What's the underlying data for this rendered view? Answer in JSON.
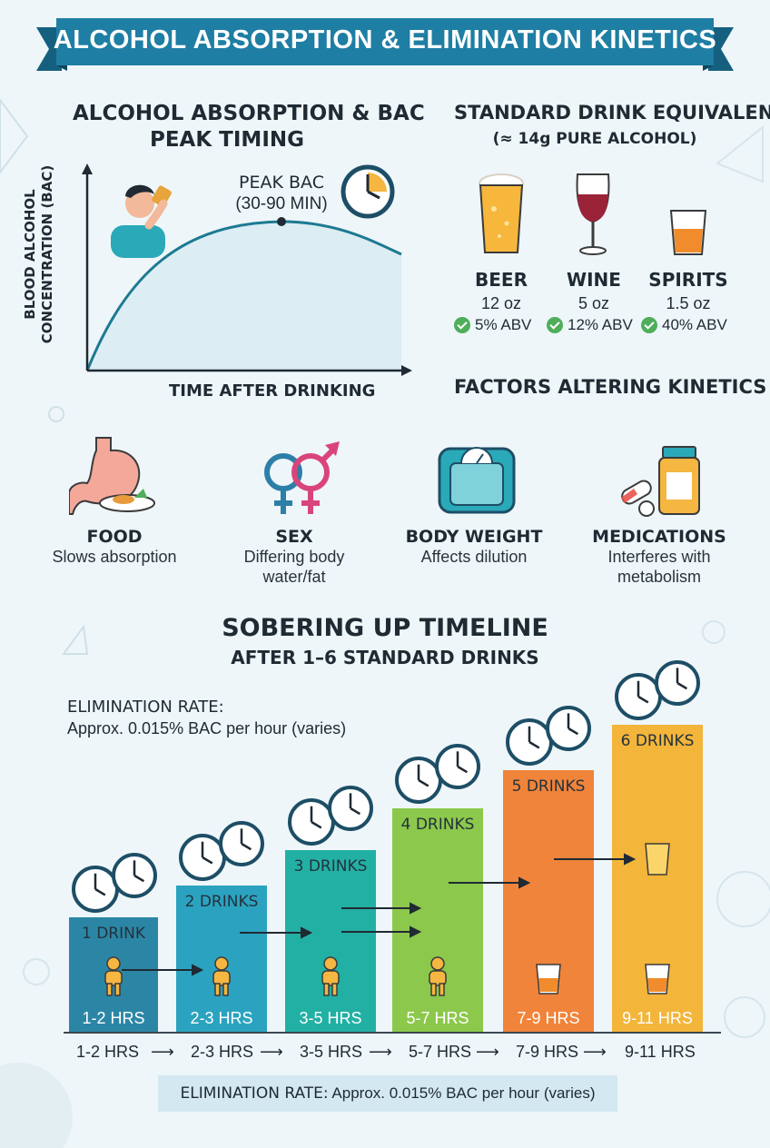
{
  "banner": {
    "title": "ALCOHOL ABSORPTION & ELIMINATION KINETICS"
  },
  "absorption": {
    "title_line1": "ALCOHOL ABSORPTION & BAC",
    "title_line2": "PEAK TIMING",
    "peak_label_line1": "PEAK BAC",
    "peak_label_line2": "(30-90 MIN)",
    "y_axis_line1": "BLOOD ALCOHOL",
    "y_axis_line2": "CONCENTRATION (BAC)",
    "x_axis": "TIME AFTER DRINKING"
  },
  "standard_drinks": {
    "title": "STANDARD DRINK EQUIVALENTS",
    "subtitle": "(≈ 14g PURE ALCOHOL)",
    "items": [
      {
        "name": "BEER",
        "volume": "12 oz",
        "abv": "5% ABV",
        "icon": "beer-glass-icon"
      },
      {
        "name": "WINE",
        "volume": "5 oz",
        "abv": "12% ABV",
        "icon": "wine-glass-icon"
      },
      {
        "name": "SPIRITS",
        "volume": "1.5 oz",
        "abv": "40% ABV",
        "icon": "shot-glass-icon"
      }
    ]
  },
  "factors": {
    "title": "FACTORS ALTERING KINETICS",
    "items": [
      {
        "title": "FOOD",
        "desc_line1": "Slows absorption",
        "desc_line2": "",
        "icon": "stomach-food-icon"
      },
      {
        "title": "SEX",
        "desc_line1": "Differing body",
        "desc_line2": "water/fat",
        "icon": "gender-symbols-icon"
      },
      {
        "title": "BODY WEIGHT",
        "desc_line1": "Affects dilution",
        "desc_line2": "",
        "icon": "scale-icon"
      },
      {
        "title": "MEDICATIONS",
        "desc_line1": "Interferes with",
        "desc_line2": "metabolism",
        "icon": "pills-bottle-icon"
      }
    ]
  },
  "sobering": {
    "title": "SOBERING UP TIMELINE",
    "subtitle": "AFTER 1–6 STANDARD DRINKS",
    "rate_label": "ELIMINATION RATE:",
    "rate_text": "Approx. 0.015% BAC per hour (varies)",
    "bars": [
      {
        "label": "1 DRINK",
        "hours": "1-2 HRS",
        "color": "#2b86a6"
      },
      {
        "label": "2 DRINKS",
        "hours": "2-3 HRS",
        "color": "#2ba3c0"
      },
      {
        "label": "3 DRINKS",
        "hours": "3-5 HRS",
        "color": "#23b0a4"
      },
      {
        "label": "4 DRINKS",
        "hours": "5-7 HRS",
        "color": "#8cc84b"
      },
      {
        "label": "5 DRINKS",
        "hours": "7-9 HRS",
        "color": "#f0843a"
      },
      {
        "label": "6 DRINKS",
        "hours": "9-11 HRS",
        "color": "#f3b53a"
      }
    ],
    "timeline": [
      "1-2 HRS",
      "2-3 HRS",
      "3-5 HRS",
      "5-7 HRS",
      "7-9 HRS",
      "9-11 HRS"
    ],
    "footer_label": "ELIMINATION RATE:",
    "footer_text": "Approx. 0.015% BAC per hour (varies)"
  }
}
